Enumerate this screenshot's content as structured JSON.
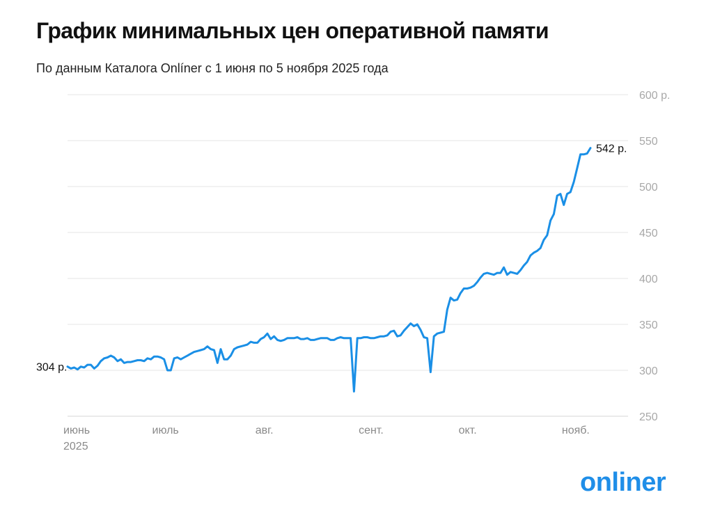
{
  "title": "График минимальных цен оперативной памяти",
  "subtitle": "По данным Каталога Onlíner с 1 июня по 5 ноября 2025 года",
  "logo_text": "onliner",
  "chart_data": {
    "type": "line",
    "title": "График минимальных цен оперативной памяти",
    "subtitle": "По данным Каталога Onlíner с 1 июня по 5 ноября 2025 года",
    "xlabel": "",
    "ylabel": "",
    "x_range": [
      "2025-06-01",
      "2025-11-05"
    ],
    "ylim": [
      250,
      600
    ],
    "y_ticks": [
      250,
      300,
      350,
      400,
      450,
      500,
      550,
      600
    ],
    "y_tick_labels": [
      "250",
      "300",
      "350",
      "400",
      "450",
      "500",
      "550",
      "600 р."
    ],
    "x_ticks": [
      {
        "date": "2025-06-01",
        "label": "июнь",
        "sublabel": "2025"
      },
      {
        "date": "2025-07-01",
        "label": "июль"
      },
      {
        "date": "2025-08-01",
        "label": "авг."
      },
      {
        "date": "2025-09-01",
        "label": "сент."
      },
      {
        "date": "2025-10-01",
        "label": "окт."
      },
      {
        "date": "2025-11-01",
        "label": "нояб."
      }
    ],
    "grid": true,
    "legend": "none",
    "line_color": "#1a8fe6",
    "annotations": [
      {
        "date": "2025-06-01",
        "value": 304,
        "text": "304 р.",
        "side": "left"
      },
      {
        "date": "2025-11-05",
        "value": 542,
        "text": "542 р.",
        "side": "right"
      }
    ],
    "series": [
      {
        "values": [
          [
            "2025-06-01",
            304
          ],
          [
            "2025-06-02",
            302
          ],
          [
            "2025-06-03",
            303
          ],
          [
            "2025-06-04",
            301
          ],
          [
            "2025-06-05",
            304
          ],
          [
            "2025-06-06",
            303
          ],
          [
            "2025-06-07",
            306
          ],
          [
            "2025-06-08",
            306
          ],
          [
            "2025-06-09",
            302
          ],
          [
            "2025-06-10",
            305
          ],
          [
            "2025-06-11",
            310
          ],
          [
            "2025-06-12",
            313
          ],
          [
            "2025-06-13",
            314
          ],
          [
            "2025-06-14",
            316
          ],
          [
            "2025-06-15",
            314
          ],
          [
            "2025-06-16",
            310
          ],
          [
            "2025-06-17",
            312
          ],
          [
            "2025-06-18",
            308
          ],
          [
            "2025-06-19",
            309
          ],
          [
            "2025-06-20",
            309
          ],
          [
            "2025-06-21",
            310
          ],
          [
            "2025-06-22",
            311
          ],
          [
            "2025-06-23",
            311
          ],
          [
            "2025-06-24",
            310
          ],
          [
            "2025-06-25",
            313
          ],
          [
            "2025-06-26",
            312
          ],
          [
            "2025-06-27",
            315
          ],
          [
            "2025-06-28",
            315
          ],
          [
            "2025-06-29",
            314
          ],
          [
            "2025-06-30",
            312
          ],
          [
            "2025-07-01",
            300
          ],
          [
            "2025-07-02",
            300
          ],
          [
            "2025-07-03",
            313
          ],
          [
            "2025-07-04",
            314
          ],
          [
            "2025-07-05",
            312
          ],
          [
            "2025-07-06",
            314
          ],
          [
            "2025-07-07",
            316
          ],
          [
            "2025-07-08",
            318
          ],
          [
            "2025-07-09",
            320
          ],
          [
            "2025-07-10",
            321
          ],
          [
            "2025-07-11",
            322
          ],
          [
            "2025-07-12",
            323
          ],
          [
            "2025-07-13",
            326
          ],
          [
            "2025-07-14",
            323
          ],
          [
            "2025-07-15",
            322
          ],
          [
            "2025-07-16",
            308
          ],
          [
            "2025-07-17",
            323
          ],
          [
            "2025-07-18",
            312
          ],
          [
            "2025-07-19",
            312
          ],
          [
            "2025-07-20",
            316
          ],
          [
            "2025-07-21",
            323
          ],
          [
            "2025-07-22",
            325
          ],
          [
            "2025-07-23",
            326
          ],
          [
            "2025-07-24",
            327
          ],
          [
            "2025-07-25",
            328
          ],
          [
            "2025-07-26",
            331
          ],
          [
            "2025-07-27",
            330
          ],
          [
            "2025-07-28",
            330
          ],
          [
            "2025-07-29",
            334
          ],
          [
            "2025-07-30",
            336
          ],
          [
            "2025-07-31",
            340
          ],
          [
            "2025-08-01",
            334
          ],
          [
            "2025-08-02",
            337
          ],
          [
            "2025-08-03",
            333
          ],
          [
            "2025-08-04",
            332
          ],
          [
            "2025-08-05",
            333
          ],
          [
            "2025-08-06",
            335
          ],
          [
            "2025-08-07",
            335
          ],
          [
            "2025-08-08",
            335
          ],
          [
            "2025-08-09",
            336
          ],
          [
            "2025-08-10",
            334
          ],
          [
            "2025-08-11",
            334
          ],
          [
            "2025-08-12",
            335
          ],
          [
            "2025-08-13",
            333
          ],
          [
            "2025-08-14",
            333
          ],
          [
            "2025-08-15",
            334
          ],
          [
            "2025-08-16",
            335
          ],
          [
            "2025-08-17",
            335
          ],
          [
            "2025-08-18",
            335
          ],
          [
            "2025-08-19",
            333
          ],
          [
            "2025-08-20",
            333
          ],
          [
            "2025-08-21",
            335
          ],
          [
            "2025-08-22",
            336
          ],
          [
            "2025-08-23",
            335
          ],
          [
            "2025-08-24",
            335
          ],
          [
            "2025-08-25",
            335
          ],
          [
            "2025-08-26",
            277
          ],
          [
            "2025-08-27",
            335
          ],
          [
            "2025-08-28",
            335
          ],
          [
            "2025-08-29",
            336
          ],
          [
            "2025-08-30",
            336
          ],
          [
            "2025-08-31",
            335
          ],
          [
            "2025-09-01",
            335
          ],
          [
            "2025-09-02",
            336
          ],
          [
            "2025-09-03",
            337
          ],
          [
            "2025-09-04",
            337
          ],
          [
            "2025-09-05",
            338
          ],
          [
            "2025-09-06",
            342
          ],
          [
            "2025-09-07",
            343
          ],
          [
            "2025-09-08",
            337
          ],
          [
            "2025-09-09",
            338
          ],
          [
            "2025-09-10",
            343
          ],
          [
            "2025-09-11",
            347
          ],
          [
            "2025-09-12",
            351
          ],
          [
            "2025-09-13",
            348
          ],
          [
            "2025-09-14",
            350
          ],
          [
            "2025-09-15",
            344
          ],
          [
            "2025-09-16",
            336
          ],
          [
            "2025-09-17",
            335
          ],
          [
            "2025-09-18",
            298
          ],
          [
            "2025-09-19",
            337
          ],
          [
            "2025-09-20",
            340
          ],
          [
            "2025-09-21",
            341
          ],
          [
            "2025-09-22",
            342
          ],
          [
            "2025-09-23",
            366
          ],
          [
            "2025-09-24",
            379
          ],
          [
            "2025-09-25",
            376
          ],
          [
            "2025-09-26",
            377
          ],
          [
            "2025-09-27",
            384
          ],
          [
            "2025-09-28",
            389
          ],
          [
            "2025-09-29",
            389
          ],
          [
            "2025-09-30",
            390
          ],
          [
            "2025-10-01",
            392
          ],
          [
            "2025-10-02",
            396
          ],
          [
            "2025-10-03",
            401
          ],
          [
            "2025-10-04",
            405
          ],
          [
            "2025-10-05",
            406
          ],
          [
            "2025-10-06",
            405
          ],
          [
            "2025-10-07",
            404
          ],
          [
            "2025-10-08",
            406
          ],
          [
            "2025-10-09",
            406
          ],
          [
            "2025-10-10",
            412
          ],
          [
            "2025-10-11",
            404
          ],
          [
            "2025-10-12",
            407
          ],
          [
            "2025-10-13",
            406
          ],
          [
            "2025-10-14",
            405
          ],
          [
            "2025-10-15",
            409
          ],
          [
            "2025-10-16",
            414
          ],
          [
            "2025-10-17",
            418
          ],
          [
            "2025-10-18",
            425
          ],
          [
            "2025-10-19",
            428
          ],
          [
            "2025-10-20",
            430
          ],
          [
            "2025-10-21",
            433
          ],
          [
            "2025-10-22",
            442
          ],
          [
            "2025-10-23",
            447
          ],
          [
            "2025-10-24",
            463
          ],
          [
            "2025-10-25",
            470
          ],
          [
            "2025-10-26",
            490
          ],
          [
            "2025-10-27",
            492
          ],
          [
            "2025-10-28",
            480
          ],
          [
            "2025-10-29",
            492
          ],
          [
            "2025-10-30",
            494
          ],
          [
            "2025-10-31",
            505
          ],
          [
            "2025-11-01",
            520
          ],
          [
            "2025-11-02",
            535
          ],
          [
            "2025-11-03",
            535
          ],
          [
            "2025-11-04",
            536
          ],
          [
            "2025-11-05",
            542
          ]
        ]
      }
    ]
  }
}
